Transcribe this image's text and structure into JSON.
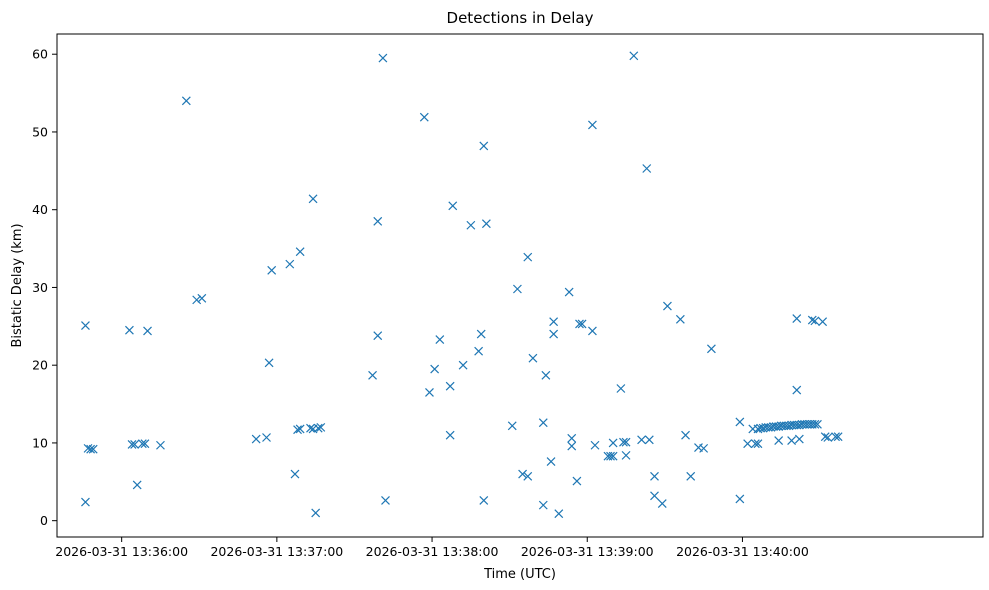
{
  "chart_data": {
    "type": "scatter",
    "title": "Detections in Delay",
    "xlabel": "Time (UTC)",
    "ylabel": "Bistatic Delay (km)",
    "marker": "x",
    "color": "#1f77b4",
    "grid": false,
    "legend": "none",
    "x_ticks": [
      "2026-03-31 13:36:00",
      "2026-03-31 13:37:00",
      "2026-03-31 13:38:00",
      "2026-03-31 13:39:00",
      "2026-03-31 13:40:00"
    ],
    "y_ticks": [
      0,
      10,
      20,
      30,
      40,
      50,
      60
    ],
    "xlim": [
      "2026-03-31 13:35:35",
      "2026-03-31 13:41:33"
    ],
    "ylim": [
      -2.1,
      62.6
    ],
    "points": [
      [
        "2026-03-31 13:35:46",
        25.1
      ],
      [
        "2026-03-31 13:35:46",
        2.4
      ],
      [
        "2026-03-31 13:35:47",
        9.3
      ],
      [
        "2026-03-31 13:35:48",
        9.2
      ],
      [
        "2026-03-31 13:35:49",
        9.2
      ],
      [
        "2026-03-31 13:36:03",
        24.5
      ],
      [
        "2026-03-31 13:36:04",
        9.8
      ],
      [
        "2026-03-31 13:36:05",
        9.8
      ],
      [
        "2026-03-31 13:36:06",
        4.6
      ],
      [
        "2026-03-31 13:36:08",
        9.9
      ],
      [
        "2026-03-31 13:36:09",
        9.9
      ],
      [
        "2026-03-31 13:36:10",
        24.4
      ],
      [
        "2026-03-31 13:36:15",
        9.7
      ],
      [
        "2026-03-31 13:36:25",
        54.0
      ],
      [
        "2026-03-31 13:36:29",
        28.4
      ],
      [
        "2026-03-31 13:36:31",
        28.6
      ],
      [
        "2026-03-31 13:36:52",
        10.5
      ],
      [
        "2026-03-31 13:36:56",
        10.7
      ],
      [
        "2026-03-31 13:36:57",
        20.3
      ],
      [
        "2026-03-31 13:36:58",
        32.2
      ],
      [
        "2026-03-31 13:37:05",
        33.0
      ],
      [
        "2026-03-31 13:37:07",
        6.0
      ],
      [
        "2026-03-31 13:37:08",
        11.7
      ],
      [
        "2026-03-31 13:37:09",
        34.6
      ],
      [
        "2026-03-31 13:37:09",
        11.8
      ],
      [
        "2026-03-31 13:37:13",
        11.9
      ],
      [
        "2026-03-31 13:37:14",
        41.4
      ],
      [
        "2026-03-31 13:37:14",
        11.8
      ],
      [
        "2026-03-31 13:37:15",
        1.0
      ],
      [
        "2026-03-31 13:37:16",
        11.9
      ],
      [
        "2026-03-31 13:37:17",
        12.0
      ],
      [
        "2026-03-31 13:37:39",
        38.5
      ],
      [
        "2026-03-31 13:37:37",
        18.7
      ],
      [
        "2026-03-31 13:37:39",
        23.8
      ],
      [
        "2026-03-31 13:37:41",
        59.5
      ],
      [
        "2026-03-31 13:37:42",
        2.6
      ],
      [
        "2026-03-31 13:37:57",
        51.9
      ],
      [
        "2026-03-31 13:37:59",
        16.5
      ],
      [
        "2026-03-31 13:38:01",
        19.5
      ],
      [
        "2026-03-31 13:38:03",
        23.3
      ],
      [
        "2026-03-31 13:38:07",
        17.3
      ],
      [
        "2026-03-31 13:38:07",
        11.0
      ],
      [
        "2026-03-31 13:38:08",
        40.5
      ],
      [
        "2026-03-31 13:38:12",
        20.0
      ],
      [
        "2026-03-31 13:38:15",
        38.0
      ],
      [
        "2026-03-31 13:38:18",
        21.8
      ],
      [
        "2026-03-31 13:38:19",
        24.0
      ],
      [
        "2026-03-31 13:38:20",
        48.2
      ],
      [
        "2026-03-31 13:38:21",
        38.2
      ],
      [
        "2026-03-31 13:38:20",
        2.6
      ],
      [
        "2026-03-31 13:38:31",
        12.2
      ],
      [
        "2026-03-31 13:38:33",
        29.8
      ],
      [
        "2026-03-31 13:38:35",
        6.0
      ],
      [
        "2026-03-31 13:38:37",
        33.9
      ],
      [
        "2026-03-31 13:38:37",
        5.7
      ],
      [
        "2026-03-31 13:38:39",
        20.9
      ],
      [
        "2026-03-31 13:38:43",
        12.6
      ],
      [
        "2026-03-31 13:38:44",
        18.7
      ],
      [
        "2026-03-31 13:38:43",
        2.0
      ],
      [
        "2026-03-31 13:38:46",
        7.6
      ],
      [
        "2026-03-31 13:38:47",
        25.6
      ],
      [
        "2026-03-31 13:38:47",
        24.0
      ],
      [
        "2026-03-31 13:38:49",
        0.9
      ],
      [
        "2026-03-31 13:38:53",
        29.4
      ],
      [
        "2026-03-31 13:38:54",
        10.6
      ],
      [
        "2026-03-31 13:38:54",
        9.6
      ],
      [
        "2026-03-31 13:38:56",
        5.1
      ],
      [
        "2026-03-31 13:38:57",
        25.3
      ],
      [
        "2026-03-31 13:38:58",
        25.3
      ],
      [
        "2026-03-31 13:39:02",
        24.4
      ],
      [
        "2026-03-31 13:39:02",
        50.9
      ],
      [
        "2026-03-31 13:39:03",
        9.7
      ],
      [
        "2026-03-31 13:39:08",
        8.3
      ],
      [
        "2026-03-31 13:39:09",
        8.3
      ],
      [
        "2026-03-31 13:39:10",
        10.0
      ],
      [
        "2026-03-31 13:39:10",
        8.3
      ],
      [
        "2026-03-31 13:39:13",
        17.0
      ],
      [
        "2026-03-31 13:39:14",
        10.1
      ],
      [
        "2026-03-31 13:39:15",
        8.4
      ],
      [
        "2026-03-31 13:39:15",
        10.1
      ],
      [
        "2026-03-31 13:39:18",
        59.8
      ],
      [
        "2026-03-31 13:39:21",
        10.4
      ],
      [
        "2026-03-31 13:39:23",
        45.3
      ],
      [
        "2026-03-31 13:39:24",
        10.4
      ],
      [
        "2026-03-31 13:39:26",
        5.7
      ],
      [
        "2026-03-31 13:39:26",
        3.2
      ],
      [
        "2026-03-31 13:39:29",
        2.2
      ],
      [
        "2026-03-31 13:39:31",
        27.6
      ],
      [
        "2026-03-31 13:39:36",
        25.9
      ],
      [
        "2026-03-31 13:39:38",
        11.0
      ],
      [
        "2026-03-31 13:39:40",
        5.7
      ],
      [
        "2026-03-31 13:39:43",
        9.4
      ],
      [
        "2026-03-31 13:39:45",
        9.3
      ],
      [
        "2026-03-31 13:39:48",
        22.1
      ],
      [
        "2026-03-31 13:39:59",
        12.7
      ],
      [
        "2026-03-31 13:39:59",
        2.8
      ],
      [
        "2026-03-31 13:40:02",
        9.9
      ],
      [
        "2026-03-31 13:40:04",
        11.8
      ],
      [
        "2026-03-31 13:40:05",
        9.9
      ],
      [
        "2026-03-31 13:40:06",
        11.8
      ],
      [
        "2026-03-31 13:40:06",
        9.9
      ],
      [
        "2026-03-31 13:40:07",
        11.9
      ],
      [
        "2026-03-31 13:40:08",
        11.9
      ],
      [
        "2026-03-31 13:40:09",
        12.0
      ],
      [
        "2026-03-31 13:40:10",
        12.0
      ],
      [
        "2026-03-31 13:40:11",
        12.0
      ],
      [
        "2026-03-31 13:40:12",
        12.1
      ],
      [
        "2026-03-31 13:40:13",
        12.1
      ],
      [
        "2026-03-31 13:40:14",
        10.3
      ],
      [
        "2026-03-31 13:40:14",
        12.1
      ],
      [
        "2026-03-31 13:40:15",
        12.2
      ],
      [
        "2026-03-31 13:40:16",
        12.2
      ],
      [
        "2026-03-31 13:40:17",
        12.2
      ],
      [
        "2026-03-31 13:40:18",
        12.2
      ],
      [
        "2026-03-31 13:40:19",
        10.3
      ],
      [
        "2026-03-31 13:40:19",
        12.3
      ],
      [
        "2026-03-31 13:40:20",
        12.3
      ],
      [
        "2026-03-31 13:40:21",
        12.3
      ],
      [
        "2026-03-31 13:40:21",
        26.0
      ],
      [
        "2026-03-31 13:40:21",
        16.8
      ],
      [
        "2026-03-31 13:40:22",
        10.5
      ],
      [
        "2026-03-31 13:40:22",
        12.3
      ],
      [
        "2026-03-31 13:40:23",
        12.4
      ],
      [
        "2026-03-31 13:40:24",
        12.4
      ],
      [
        "2026-03-31 13:40:25",
        12.4
      ],
      [
        "2026-03-31 13:40:26",
        12.4
      ],
      [
        "2026-03-31 13:40:27",
        25.8
      ],
      [
        "2026-03-31 13:40:27",
        12.4
      ],
      [
        "2026-03-31 13:40:28",
        25.7
      ],
      [
        "2026-03-31 13:40:28",
        12.4
      ],
      [
        "2026-03-31 13:40:29",
        12.4
      ],
      [
        "2026-03-31 13:40:31",
        25.6
      ],
      [
        "2026-03-31 13:40:32",
        10.8
      ],
      [
        "2026-03-31 13:40:33",
        10.7
      ],
      [
        "2026-03-31 13:40:36",
        10.8
      ],
      [
        "2026-03-31 13:40:37",
        10.8
      ]
    ]
  }
}
